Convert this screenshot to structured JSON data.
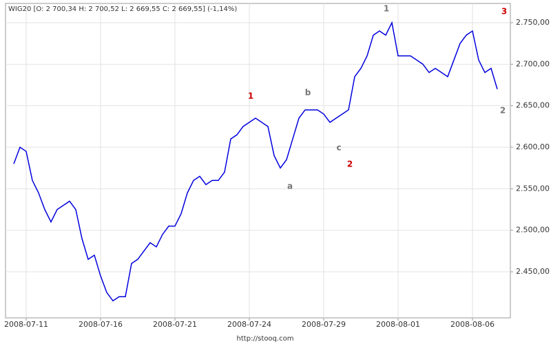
{
  "chart_data": {
    "type": "line",
    "title": "WIG20 [O: 2 700,34  H: 2 700,52  L: 2 669,55  C: 2 669,55] (-1,14%)",
    "footer": "http://stooq.com",
    "annotations": [
      "1",
      "b",
      "c",
      "a",
      "2",
      "1",
      "3",
      "2"
    ],
    "categories": [
      null,
      null,
      "2008-07-11",
      null,
      null,
      null,
      null,
      null,
      null,
      null,
      null,
      null,
      null,
      null,
      "2008-07-16",
      null,
      null,
      null,
      null,
      null,
      null,
      null,
      null,
      null,
      null,
      null,
      "2008-07-21",
      null,
      null,
      null,
      null,
      null,
      null,
      null,
      null,
      null,
      null,
      null,
      "2008-07-24",
      null,
      null,
      null,
      null,
      null,
      null,
      null,
      null,
      null,
      null,
      null,
      "2008-07-29",
      null,
      null,
      null,
      null,
      null,
      null,
      null,
      null,
      null,
      null,
      null,
      "2008-08-01",
      null,
      null,
      null,
      null,
      null,
      null,
      null,
      null,
      null,
      null,
      null,
      "2008-08-06",
      null,
      null,
      null,
      null
    ],
    "values": [
      2580,
      2600,
      2595,
      2560,
      2545,
      2525,
      2510,
      2525,
      2530,
      2535,
      2525,
      2490,
      2465,
      2470,
      2445,
      2425,
      2415,
      2420,
      2420,
      2460,
      2465,
      2475,
      2485,
      2480,
      2495,
      2505,
      2505,
      2520,
      2545,
      2560,
      2565,
      2555,
      2560,
      2560,
      2570,
      2610,
      2615,
      2625,
      2630,
      2635,
      2630,
      2625,
      2590,
      2575,
      2585,
      2610,
      2635,
      2645,
      2645,
      2645,
      2640,
      2630,
      2635,
      2640,
      2645,
      2685,
      2695,
      2710,
      2735,
      2740,
      2735,
      2750,
      2710,
      2710,
      2710,
      2705,
      2700,
      2690,
      2695,
      2690,
      2685,
      2705,
      2725,
      2735,
      2740,
      2705,
      2690,
      2695,
      2670
    ],
    "color": "#0000dd",
    "ylim": [
      2394.5,
      2773.2
    ],
    "yticks": [
      {
        "value": 2450,
        "label": "2.450,00"
      },
      {
        "value": 2500,
        "label": "2.500,00"
      },
      {
        "value": 2550,
        "label": "2.550,00"
      },
      {
        "value": 2600,
        "label": "2.600,00"
      },
      {
        "value": 2650,
        "label": "2.650,00"
      },
      {
        "value": 2700,
        "label": "2.700,00"
      },
      {
        "value": 2750,
        "label": "2.750,00"
      }
    ],
    "grid": true
  }
}
